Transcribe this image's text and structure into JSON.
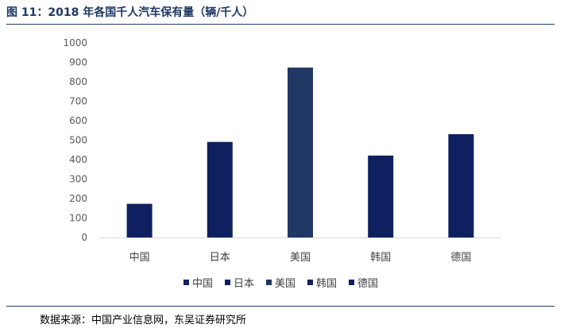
{
  "figure": {
    "title": "图 11：2018 年各国千人汽车保有量（辆/千人）",
    "source": "数据来源：中国产业信息网，东吴证券研究所"
  },
  "chart_data": {
    "type": "bar",
    "title": "",
    "xlabel": "",
    "ylabel": "",
    "categories": [
      "中国",
      "日本",
      "美国",
      "韩国",
      "德国"
    ],
    "values": [
      173,
      491,
      873,
      421,
      531
    ],
    "ylim": [
      0,
      1000
    ],
    "yticks": [
      0,
      100,
      200,
      300,
      400,
      500,
      600,
      700,
      800,
      900,
      1000
    ],
    "grid": false,
    "legend": {
      "position": "bottom",
      "entries": [
        "中国",
        "日本",
        "美国",
        "韩国",
        "德国"
      ]
    },
    "colors": [
      "#0e2060",
      "#0e2060",
      "#1f3864",
      "#0e2060",
      "#0e2060"
    ]
  }
}
